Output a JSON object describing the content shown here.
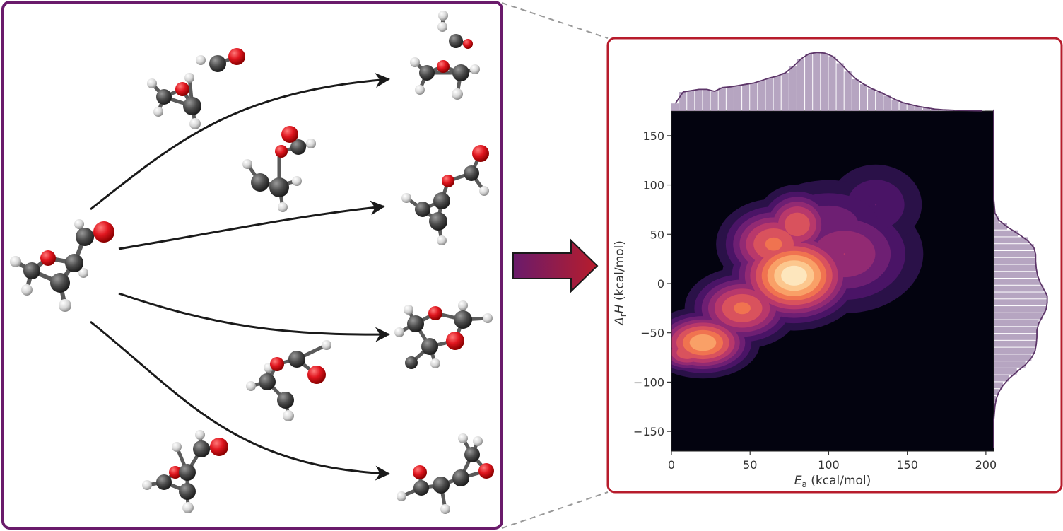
{
  "colors": {
    "left_panel_border": "#6a1b6b",
    "right_panel_border": "#b71c2c",
    "arrow_gradient_start": "#6a1b6b",
    "arrow_gradient_end": "#b71c2c",
    "atom_carbon": "#4a4a4a",
    "atom_oxygen": "#e0161f",
    "atom_hydrogen": "#d9d9d9",
    "kde_background": "#03030f",
    "histogram": "#a48fb2",
    "marginal_line": "#5c3568"
  },
  "reaction_arrows": [
    "arrow-to-product-1",
    "arrow-to-product-2",
    "arrow-to-product-3",
    "arrow-to-product-4"
  ],
  "chart_data": {
    "type": "heatmap",
    "description_kind": "kde-joint-plot-with-marginal-histograms",
    "xlabel_main": "E",
    "xlabel_sub": "a",
    "xlabel_units": " (kcal/mol)",
    "ylabel_prefix": "Δ",
    "ylabel_sub": "r",
    "ylabel_main": "H",
    "ylabel_units": " (kcal/mol)",
    "xlim": [
      0,
      205
    ],
    "ylim": [
      -170,
      175
    ],
    "x_ticks": [
      0,
      50,
      100,
      150,
      200
    ],
    "y_ticks": [
      150,
      100,
      50,
      0,
      -50,
      -100,
      -150
    ],
    "y_tick_labels": [
      "150",
      "100",
      "50",
      "0",
      "−50",
      "−100",
      "−150"
    ],
    "density_centers": [
      {
        "x": 78,
        "y": 8,
        "sx": 18,
        "sy": 22,
        "w": 1.0
      },
      {
        "x": 65,
        "y": 40,
        "sx": 16,
        "sy": 20,
        "w": 0.55
      },
      {
        "x": 80,
        "y": 60,
        "sx": 12,
        "sy": 18,
        "w": 0.5
      },
      {
        "x": 45,
        "y": -25,
        "sx": 16,
        "sy": 18,
        "w": 0.55
      },
      {
        "x": 20,
        "y": -60,
        "sx": 15,
        "sy": 15,
        "w": 0.75
      },
      {
        "x": 10,
        "y": -70,
        "sx": 10,
        "sy": 10,
        "w": 0.5
      },
      {
        "x": 110,
        "y": 30,
        "sx": 25,
        "sy": 30,
        "w": 0.3
      },
      {
        "x": 130,
        "y": 80,
        "sx": 18,
        "sy": 25,
        "w": 0.15
      },
      {
        "x": 100,
        "y": 60,
        "sx": 25,
        "sy": 25,
        "w": 0.2
      }
    ],
    "top_histogram": {
      "bin_start": 0,
      "bin_width": 5,
      "counts": [
        0.12,
        0.3,
        0.32,
        0.34,
        0.34,
        0.31,
        0.37,
        0.38,
        0.4,
        0.42,
        0.44,
        0.48,
        0.52,
        0.55,
        0.6,
        0.7,
        0.82,
        0.9,
        0.92,
        0.91,
        0.86,
        0.75,
        0.62,
        0.5,
        0.42,
        0.35,
        0.3,
        0.24,
        0.18,
        0.13,
        0.1,
        0.07,
        0.05,
        0.03,
        0.02,
        0.015,
        0.01,
        0.008,
        0.005,
        0.003
      ]
    },
    "right_histogram": {
      "bin_start": -170,
      "bin_width": 7,
      "counts": [
        0,
        0,
        0,
        0,
        0,
        0.01,
        0.02,
        0.04,
        0.08,
        0.15,
        0.25,
        0.38,
        0.52,
        0.62,
        0.68,
        0.7,
        0.71,
        0.71,
        0.74,
        0.8,
        0.86,
        0.88,
        0.88,
        0.82,
        0.76,
        0.72,
        0.7,
        0.69,
        0.69,
        0.66,
        0.56,
        0.4,
        0.22,
        0.08,
        0.02,
        0.01,
        0,
        0,
        0,
        0,
        0,
        0,
        0,
        0,
        0,
        0,
        0,
        0,
        0,
        0
      ]
    },
    "legend": "none",
    "grid": "off"
  }
}
